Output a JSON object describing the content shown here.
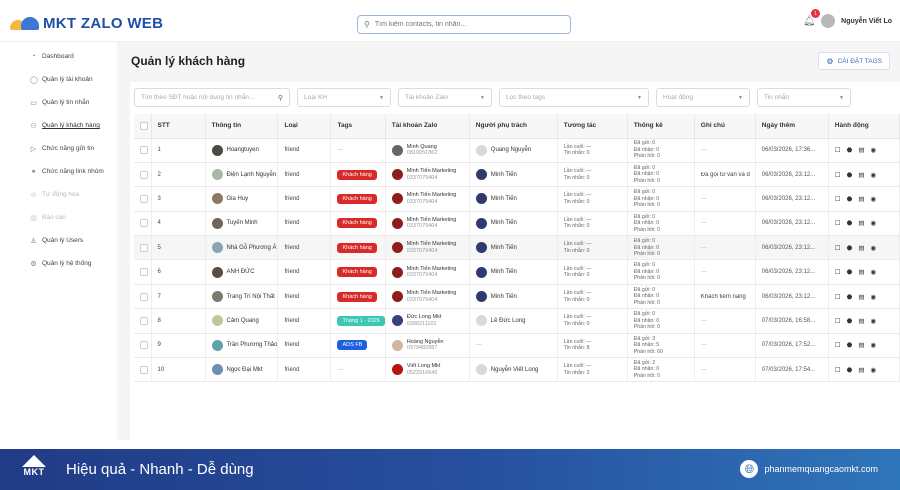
{
  "header": {
    "app_title": "MKT ZALO WEB",
    "search_placeholder": "Tìm kiếm contacts, tin nhắn...",
    "notification_count": "1",
    "user_name": "Nguyễn Viết Lo"
  },
  "sidebar": {
    "items": [
      {
        "label": "Dashboard",
        "icon": "dashboard-icon",
        "glyph": "◔"
      },
      {
        "label": "Quản lý tài khoản",
        "icon": "account-icon",
        "glyph": "◯"
      },
      {
        "label": "Quản lý tin nhắn",
        "icon": "message-icon",
        "glyph": "▭"
      },
      {
        "label": "Quản lý khách hàng",
        "icon": "customers-icon",
        "glyph": "⚇"
      },
      {
        "label": "Chức năng gửi tin",
        "icon": "send-icon",
        "glyph": "▷"
      },
      {
        "label": "Chức năng link nhóm",
        "icon": "link-icon",
        "glyph": "⚭"
      },
      {
        "label": "Tự động hóa",
        "icon": "automation-icon",
        "glyph": "⊚"
      },
      {
        "label": "Báo cáo",
        "icon": "report-icon",
        "glyph": "▥"
      },
      {
        "label": "Quản lý Users",
        "icon": "user-icon",
        "glyph": "♙"
      },
      {
        "label": "Quản lý hệ thống",
        "icon": "system-icon",
        "glyph": "⚙"
      }
    ]
  },
  "main": {
    "title": "Quản lý khách hàng",
    "settings_button": "CÀI ĐẶT TAGS",
    "filters": {
      "search_placeholder": "Tìm theo SĐT hoặc nội dung tin nhắn...",
      "type": "Loại KH",
      "zalo_account": "Tài khoản Zalo",
      "tags": "Lọc theo tags",
      "activity": "Hoạt động",
      "messages": "Tin nhắn"
    },
    "columns": [
      "STT",
      "Thông tin",
      "Loại",
      "Tags",
      "Tài khoản Zalo",
      "Người phụ trách",
      "Tương tác",
      "Thống kê",
      "Ghi chú",
      "Ngày thêm",
      "Hành động"
    ],
    "rows": [
      {
        "stt": "1",
        "name": "Hoangtuyen",
        "type": "friend",
        "tag": "—",
        "tag_color": "",
        "acc_name": "Minh Quang",
        "acc_phone": "0810051862",
        "owner": "Quang Nguyễn",
        "last": "Lần cuối: —",
        "msgs": "Tin nhắn: 0",
        "sent": "Đã gửi: 0",
        "recv": "Đã nhận: 0",
        "reply": "Phản hồi: 0",
        "note": "—",
        "date": "06/03/2026, 17:36..."
      },
      {
        "stt": "2",
        "name": "Điện Lạnh Nguyễn",
        "type": "friend",
        "tag": "Khách hàng",
        "tag_color": "#d92a2a",
        "acc_name": "Minh Tiến Marketing",
        "acc_phone": "0337079404",
        "owner": "Minh Tiến",
        "last": "Lần cuối: —",
        "msgs": "Tin nhắn: 0",
        "sent": "Đã gửi: 0",
        "recv": "Đã nhận: 0",
        "reply": "Phản hồi: 0",
        "note": "Đã gọi tư vấn và d",
        "date": "06/03/2026, 23:12..."
      },
      {
        "stt": "3",
        "name": "Gia Huy",
        "type": "friend",
        "tag": "Khách hàng",
        "tag_color": "#d92a2a",
        "acc_name": "Minh Tiến Marketing",
        "acc_phone": "0337079404",
        "owner": "Minh Tiến",
        "last": "Lần cuối: —",
        "msgs": "Tin nhắn: 0",
        "sent": "Đã gửi: 0",
        "recv": "Đã nhận: 0",
        "reply": "Phản hồi: 0",
        "note": "—",
        "date": "06/03/2026, 23:12..."
      },
      {
        "stt": "4",
        "name": "Tuyến Minh",
        "type": "friend",
        "tag": "Khách hàng",
        "tag_color": "#d92a2a",
        "acc_name": "Minh Tiến Marketing",
        "acc_phone": "0337079404",
        "owner": "Minh Tiến",
        "last": "Lần cuối: —",
        "msgs": "Tin nhắn: 0",
        "sent": "Đã gửi: 0",
        "recv": "Đã nhận: 0",
        "reply": "Phản hồi: 0",
        "note": "—",
        "date": "06/03/2026, 23:12..."
      },
      {
        "stt": "5",
        "name": "Nhà Gỗ Phương Á",
        "type": "friend",
        "tag": "Khách hàng",
        "tag_color": "#d92a2a",
        "acc_name": "Minh Tiến Marketing",
        "acc_phone": "0337079404",
        "owner": "Minh Tiến",
        "last": "Lần cuối: —",
        "msgs": "Tin nhắn: 0",
        "sent": "Đã gửi: 0",
        "recv": "Đã nhận: 0",
        "reply": "Phản hồi: 0",
        "note": "—",
        "date": "06/03/2026, 23:12..."
      },
      {
        "stt": "6",
        "name": "ANH ĐỨC",
        "type": "friend",
        "tag": "Khách hàng",
        "tag_color": "#d92a2a",
        "acc_name": "Minh Tiến Marketing",
        "acc_phone": "0337079404",
        "owner": "Minh Tiến",
        "last": "Lần cuối: —",
        "msgs": "Tin nhắn: 0",
        "sent": "Đã gửi: 0",
        "recv": "Đã nhận: 0",
        "reply": "Phản hồi: 0",
        "note": "—",
        "date": "06/03/2026, 23:12..."
      },
      {
        "stt": "7",
        "name": "Trang Trí Nội Thất",
        "type": "friend",
        "tag": "Khách hàng",
        "tag_color": "#d92a2a",
        "acc_name": "Minh Tiến Marketing",
        "acc_phone": "0337079404",
        "owner": "Minh Tiến",
        "last": "Lần cuối: —",
        "msgs": "Tin nhắn: 0",
        "sent": "Đã gửi: 0",
        "recv": "Đã nhận: 0",
        "reply": "Phản hồi: 0",
        "note": "Khách tiềm năng",
        "date": "06/03/2026, 23:12..."
      },
      {
        "stt": "8",
        "name": "Cảm Quang",
        "type": "friend",
        "tag": "Tháng 1 - 2026",
        "tag_color": "#3cc7b4",
        "acc_name": "Đức Long Mkt",
        "acc_phone": "0396211101",
        "owner": "Lê Đức Long",
        "last": "Lần cuối: —",
        "msgs": "Tin nhắn: 0",
        "sent": "Đã gửi: 0",
        "recv": "Đã nhận: 0",
        "reply": "Phản hồi: 0",
        "note": "—",
        "date": "07/03/2026, 16:58..."
      },
      {
        "stt": "9",
        "name": "Trần Phương Thảo",
        "type": "friend",
        "tag": "ADS FB",
        "tag_color": "#1e5fe0",
        "acc_name": "Hoàng Nguyễn",
        "acc_phone": "0979482887",
        "owner": "—",
        "last": "Lần cuối: —",
        "msgs": "Tin nhắn: 8",
        "sent": "Đã gửi: 3",
        "recv": "Đã nhận: 5",
        "reply": "Phản hồi: 60",
        "note": "—",
        "date": "07/03/2026, 17:52..."
      },
      {
        "stt": "10",
        "name": "Ngọc Đại Mkt",
        "type": "friend",
        "tag": "—",
        "tag_color": "",
        "acc_name": "Viết Long Mkt",
        "acc_phone": "0522916646",
        "owner": "Nguyễn Viết Long",
        "last": "Lần cuối: —",
        "msgs": "Tin nhắn: 2",
        "sent": "Đã gửi: 2",
        "recv": "Đã nhận: 0",
        "reply": "Phản hồi: 0",
        "note": "—",
        "date": "07/03/2026, 17:54..."
      }
    ],
    "avatar_colors": [
      "#4b4b45",
      "#a6b9a2",
      "#8b7a63",
      "#6f6558",
      "#8aa4b5",
      "#5a4e44",
      "#7c7a6f",
      "#c5c49a",
      "#5fa3a8",
      "#6d8fb0"
    ],
    "acc_avatar_colors": [
      "#666",
      "#8e1d1d",
      "#8e1d1d",
      "#8e1d1d",
      "#8e1d1d",
      "#8e1d1d",
      "#8e1d1d",
      "#3b3f7a",
      "#d2b79f",
      "#b3150f"
    ],
    "actions": [
      "☐",
      "⬣",
      "▤",
      "◉"
    ]
  },
  "footer": {
    "brand": "MKT",
    "slogan": "Hiệu quả - Nhanh - Dễ dùng",
    "website": "phanmemquangcaomkt.com"
  },
  "colors": {
    "brand_blue": "#1d4fa6",
    "tag_red": "#d92a2a",
    "tag_teal": "#3cc7b4",
    "tag_blue": "#1e5fe0"
  }
}
